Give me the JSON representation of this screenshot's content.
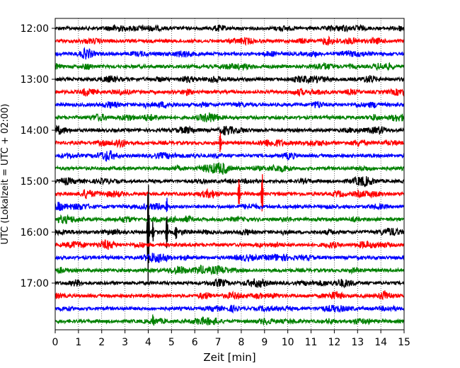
{
  "chart_data": {
    "type": "line",
    "title": "",
    "xlabel": "Zeit  [min]",
    "ylabel": "UTC (Lokalzeit = UTC + 02:00)",
    "xlim": [
      0,
      15
    ],
    "x_ticks": [
      "0",
      "1",
      "2",
      "3",
      "4",
      "5",
      "6",
      "7",
      "8",
      "9",
      "10",
      "11",
      "12",
      "13",
      "14",
      "15"
    ],
    "y_ticks": [
      "12:00",
      "13:00",
      "14:00",
      "15:00",
      "16:00",
      "17:00"
    ],
    "grid": "vertical-dotted",
    "trace_count": 24,
    "trace_interval_min": 15,
    "trace_colors": [
      "#000000",
      "#ff0000",
      "#0000ff",
      "#008000"
    ],
    "events": [
      {
        "trace": "14:15",
        "minute": 7.1,
        "amplitude": 1.6
      },
      {
        "trace": "15:15",
        "minute": 7.9,
        "amplitude": 2.2
      },
      {
        "trace": "15:15",
        "minute": 8.9,
        "amplitude": 3.0
      },
      {
        "trace": "15:30",
        "minute": 4.8,
        "amplitude": 1.0
      },
      {
        "trace": "16:00",
        "minute": 4.0,
        "amplitude": 8.0
      },
      {
        "trace": "16:00",
        "minute": 4.2,
        "amplitude": 1.5
      },
      {
        "trace": "16:00",
        "minute": 4.8,
        "amplitude": 2.5
      },
      {
        "trace": "16:00",
        "minute": 5.2,
        "amplitude": 0.8
      },
      {
        "trace": "17:45",
        "minute": 4.2,
        "amplitude": 0.8
      }
    ]
  }
}
